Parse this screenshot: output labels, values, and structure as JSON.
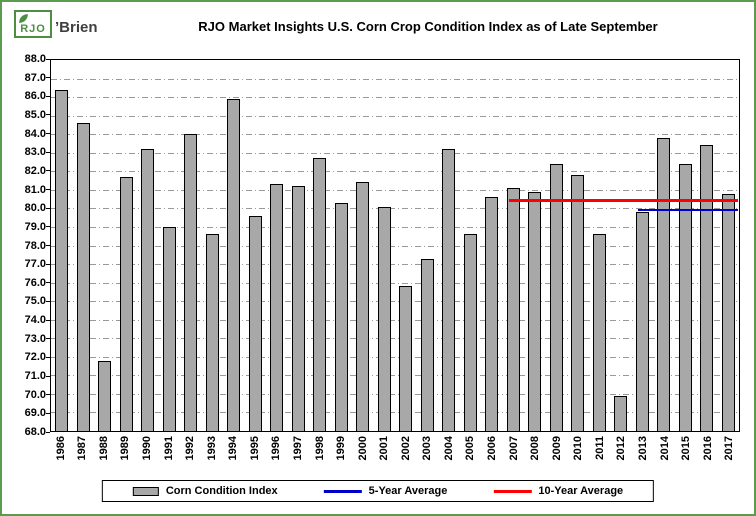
{
  "logo": {
    "box_text": "RJO",
    "suffix": "’Brien"
  },
  "chart_data": {
    "type": "bar",
    "title": "RJO Market Insights U.S. Corn Crop Condition Index as of Late September",
    "categories": [
      "1986",
      "1987",
      "1988",
      "1989",
      "1990",
      "1991",
      "1992",
      "1993",
      "1994",
      "1995",
      "1996",
      "1997",
      "1998",
      "1999",
      "2000",
      "2001",
      "2002",
      "2003",
      "2004",
      "2005",
      "2006",
      "2007",
      "2008",
      "2009",
      "2010",
      "2011",
      "2012",
      "2013",
      "2014",
      "2015",
      "2016",
      "2017"
    ],
    "values": [
      86.4,
      84.6,
      71.8,
      81.7,
      83.2,
      79.0,
      84.0,
      78.6,
      85.9,
      79.6,
      81.3,
      81.2,
      82.7,
      80.3,
      81.4,
      80.1,
      75.8,
      77.3,
      83.2,
      78.6,
      80.6,
      81.1,
      80.9,
      82.4,
      81.8,
      78.6,
      69.9,
      79.8,
      83.8,
      82.4,
      83.4,
      80.8
    ],
    "ylim": [
      68.0,
      88.0
    ],
    "ytick_step": 1.0,
    "y_ticks": [
      "88.0",
      "87.0",
      "86.0",
      "85.0",
      "84.0",
      "83.0",
      "82.0",
      "81.0",
      "80.0",
      "79.0",
      "78.0",
      "77.0",
      "76.0",
      "75.0",
      "74.0",
      "73.0",
      "72.0",
      "71.0",
      "70.0",
      "69.0",
      "68.0"
    ],
    "grid": "horizontal dash-dot",
    "bar_color": "#a8a8a8",
    "bar_border": "#000000",
    "reference_lines": [
      {
        "name": "10-Year Average",
        "value": 80.4,
        "color": "#ff0000",
        "thickness": 3,
        "start_year": "2007",
        "end_year": "2017"
      },
      {
        "name": "5-Year Average",
        "value": 79.9,
        "color": "#0000cc",
        "thickness": 2,
        "start_year": "2013",
        "end_year": "2017"
      }
    ],
    "legend": [
      {
        "label": "Corn Condition Index",
        "swatch": "bar",
        "color": "#a8a8a8"
      },
      {
        "label": "5-Year Average",
        "swatch": "line",
        "color": "#0000cc"
      },
      {
        "label": "10-Year Average",
        "swatch": "line",
        "color": "#ff0000"
      }
    ],
    "legend_position": "bottom"
  }
}
